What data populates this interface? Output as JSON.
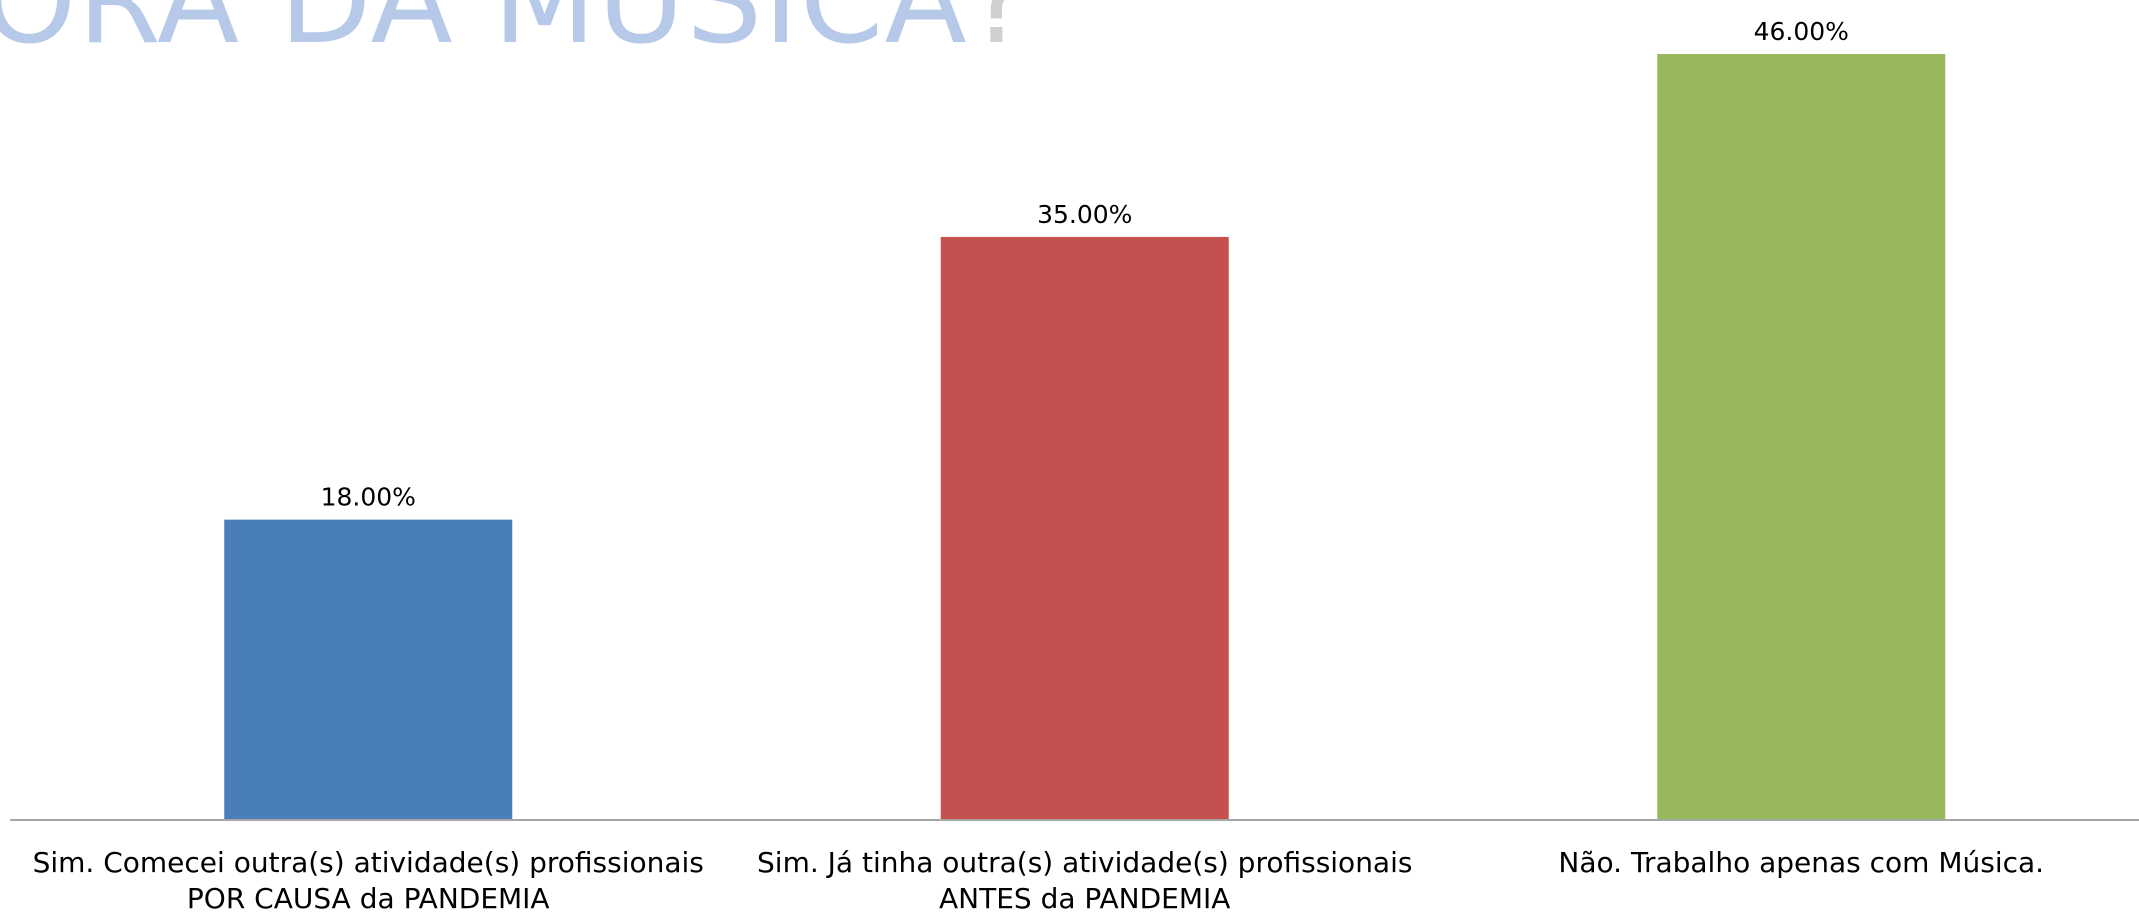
{
  "header": {
    "title_fragment": "ORA DA MÚSICA",
    "title_punct": "?"
  },
  "colors": {
    "title": "#b7c9e8",
    "title_punct": "#cfcfcf",
    "axis": "#a6a6a6"
  },
  "chart_data": {
    "type": "bar",
    "categories": [
      "Sim. Comecei outra(s) atividade(s) profissionais POR CAUSA da PANDEMIA",
      "Sim. Já tinha outra(s) atividade(s) profissionais ANTES da PANDEMIA",
      "Não. Trabalho apenas com Música."
    ],
    "category_lines": [
      [
        "Sim. Comecei outra(s) atividade(s) profissionais",
        "POR CAUSA da PANDEMIA"
      ],
      [
        "Sim. Já tinha outra(s) atividade(s) profissionais",
        "ANTES da PANDEMIA"
      ],
      [
        "Não. Trabalho apenas com Música."
      ]
    ],
    "values": [
      18,
      35,
      46
    ],
    "value_labels": [
      "18.00%",
      "35.00%",
      "46.00%"
    ],
    "colors": [
      "#4a7eb8",
      "#c55050",
      "#97b95c"
    ],
    "ylim": [
      0,
      46
    ],
    "grid": false,
    "legend": "none"
  }
}
